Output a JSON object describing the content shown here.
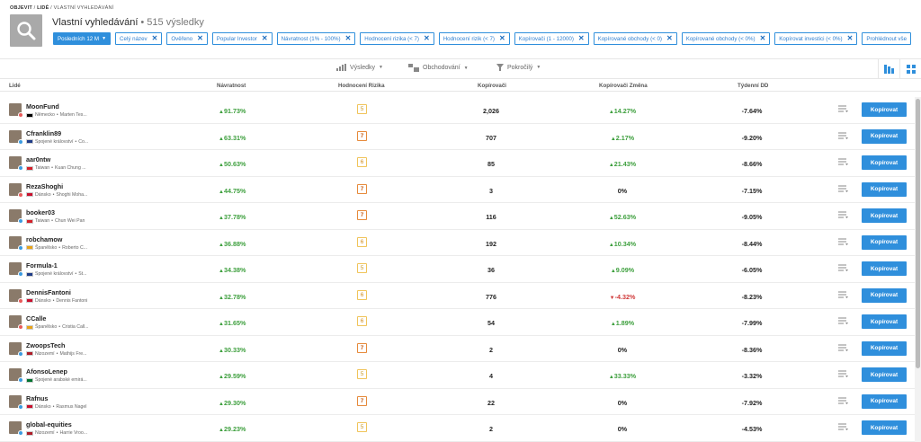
{
  "breadcrumb": {
    "part1": "OBJEVIT",
    "part2": "LIDÉ",
    "part3": "VLASTNÍ VYHLEDÁVÁNÍ"
  },
  "header": {
    "title": "Vlastní vyhledávání",
    "count": "• 515 výsledky"
  },
  "filters": {
    "period": "Posledních 12 M",
    "chips": [
      "Celý název",
      "Ověřeno",
      "Popular Investor",
      "Návratnost (1% - 100%)",
      "Hodnocení rizika (< 7)",
      "Hodnocení rizik (< 7)",
      "Kopírovači (1 - 12000)",
      "Kopírované obchody (< 0)",
      "Kopírované obchody (< 0%)",
      "Kopírovat investici (< 0%)"
    ],
    "more": "Prohlédnout vše"
  },
  "toolbar": {
    "results": "Výsledky",
    "trading": "Obchodování",
    "advanced": "Pokročilý"
  },
  "columns": {
    "people": "Lidé",
    "return": "Návratnost",
    "risk": "Hodnocení Rizika",
    "copiers": "Kopírovači",
    "copiers_change": "Kopírovači Změna",
    "weekly_dd": "Týdenní DD"
  },
  "copy_label": "Kopírovat",
  "rows": [
    {
      "name": "MoonFund",
      "country": "Německo",
      "full": "Marten Tes...",
      "ret": "91.73%",
      "risk": "5",
      "copiers": "2,026",
      "change": "14.27%",
      "change_sign": "pos",
      "dd": "-7.64%",
      "dot": "#e85a5a",
      "flag": "#000"
    },
    {
      "name": "Cfranklin89",
      "country": "Spojené království",
      "full": "Co...",
      "ret": "63.31%",
      "risk": "7",
      "copiers": "707",
      "change": "2.17%",
      "change_sign": "pos",
      "dd": "-9.20%",
      "dot": "#3b9be0",
      "flag": "#1f3c88"
    },
    {
      "name": "aar0ntw",
      "country": "Taiwan",
      "full": "Kuan Chung ...",
      "ret": "50.63%",
      "risk": "6",
      "copiers": "85",
      "change": "21.43%",
      "change_sign": "pos",
      "dd": "-8.66%",
      "dot": "#3b9be0",
      "flag": "#d4202a"
    },
    {
      "name": "RezaShoghi",
      "country": "Dánsko",
      "full": "Shoghi Moha...",
      "ret": "44.75%",
      "risk": "7",
      "copiers": "3",
      "change": "0%",
      "change_sign": "zero",
      "dd": "-7.15%",
      "dot": "#e85a5a",
      "flag": "#c8102e"
    },
    {
      "name": "booker03",
      "country": "Taiwan",
      "full": "Chun Wei Pan",
      "ret": "37.78%",
      "risk": "7",
      "copiers": "116",
      "change": "52.63%",
      "change_sign": "pos",
      "dd": "-9.05%",
      "dot": "#3b9be0",
      "flag": "#d4202a"
    },
    {
      "name": "robchamow",
      "country": "Španělsko",
      "full": "Roberto C...",
      "ret": "36.88%",
      "risk": "6",
      "copiers": "192",
      "change": "10.34%",
      "change_sign": "pos",
      "dd": "-8.44%",
      "dot": "#3b9be0",
      "flag": "#e8a317"
    },
    {
      "name": "Formula-1",
      "country": "Spojené království",
      "full": "St...",
      "ret": "34.38%",
      "risk": "5",
      "copiers": "36",
      "change": "9.09%",
      "change_sign": "pos",
      "dd": "-6.05%",
      "dot": "#3b9be0",
      "flag": "#1f3c88"
    },
    {
      "name": "DennisFantoni",
      "country": "Dánsko",
      "full": "Dennis Fantoni",
      "ret": "32.78%",
      "risk": "6",
      "copiers": "776",
      "change": "-4.32%",
      "change_sign": "neg",
      "dd": "-8.23%",
      "dot": "#e85a5a",
      "flag": "#c8102e"
    },
    {
      "name": "CCalle",
      "country": "Španělsko",
      "full": "Cristia Call...",
      "ret": "31.65%",
      "risk": "6",
      "copiers": "54",
      "change": "1.89%",
      "change_sign": "pos",
      "dd": "-7.99%",
      "dot": "#e85a5a",
      "flag": "#e8a317"
    },
    {
      "name": "ZwoopsTech",
      "country": "Nizozemí",
      "full": "Mathijs Fre...",
      "ret": "30.33%",
      "risk": "7",
      "copiers": "2",
      "change": "0%",
      "change_sign": "zero",
      "dd": "-8.36%",
      "dot": "#3b9be0",
      "flag": "#ae1c28"
    },
    {
      "name": "AfonsoLenep",
      "country": "Spojené arabské emirá...",
      "full": "",
      "ret": "29.59%",
      "risk": "5",
      "copiers": "4",
      "change": "33.33%",
      "change_sign": "pos",
      "dd": "-3.32%",
      "dot": "#3b9be0",
      "flag": "#00732f"
    },
    {
      "name": "Rafnus",
      "country": "Dánsko",
      "full": "Rasmus Nagel",
      "ret": "29.30%",
      "risk": "7",
      "copiers": "22",
      "change": "0%",
      "change_sign": "zero",
      "dd": "-7.92%",
      "dot": "#3b9be0",
      "flag": "#c8102e"
    },
    {
      "name": "global-equities",
      "country": "Nizozemí",
      "full": "Harrie Vroo...",
      "ret": "29.23%",
      "risk": "5",
      "copiers": "2",
      "change": "0%",
      "change_sign": "zero",
      "dd": "-4.53%",
      "dot": "#3b9be0",
      "flag": "#ae1c28"
    }
  ]
}
